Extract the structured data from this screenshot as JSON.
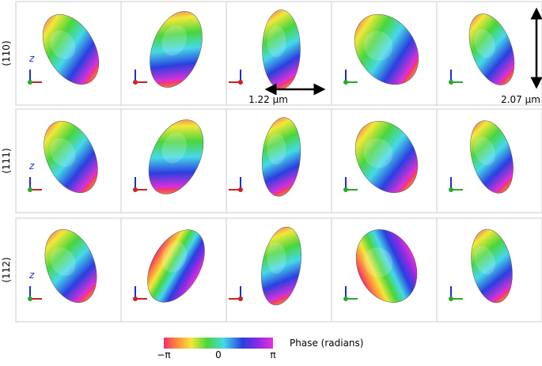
{
  "rows": [
    {
      "label": "(110)"
    },
    {
      "label": "(111)"
    },
    {
      "label": "(112)"
    }
  ],
  "axis_label": "z",
  "annotations": {
    "width": "1.22 µm",
    "height": "2.07 µm"
  },
  "colorbar": {
    "label": "Phase (radians)",
    "ticks": [
      "−π",
      "0",
      "π"
    ]
  }
}
